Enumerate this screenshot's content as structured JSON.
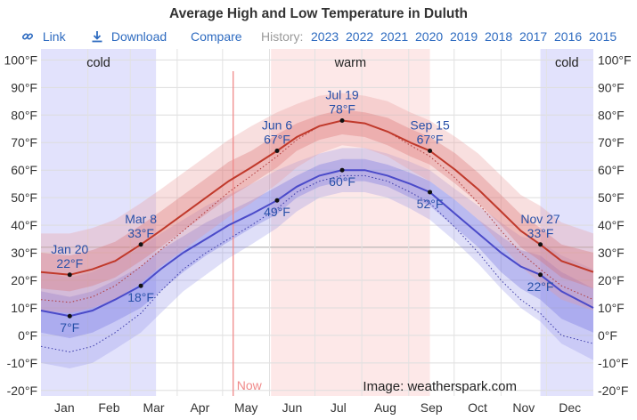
{
  "title": "Average High and Low Temperature in Duluth",
  "toolbar": {
    "link_label": "Link",
    "download_label": "Download",
    "compare_label": "Compare",
    "history_label": "History:",
    "years": [
      "2023",
      "2022",
      "2021",
      "2020",
      "2019",
      "2018",
      "2017",
      "2016",
      "2015"
    ]
  },
  "colors": {
    "high_line": "#c0392b",
    "low_line": "#4a4ac9",
    "cold_band": "#d8d8fb",
    "warm_band": "#fde5e5",
    "now_line": "#f08a8a",
    "label_text": "#2850a8"
  },
  "icons": {
    "link": "link-icon",
    "download": "download-icon"
  },
  "chart_data": {
    "type": "area",
    "title": "Average High and Low Temperature in Duluth",
    "xlabel": "",
    "ylabel": "",
    "x_ticks": [
      "Jan",
      "Feb",
      "Mar",
      "Apr",
      "May",
      "Jun",
      "Jul",
      "Aug",
      "Sep",
      "Oct",
      "Nov",
      "Dec"
    ],
    "y_ticks": [
      "-20°F",
      "-10°F",
      "0°F",
      "10°F",
      "20°F",
      "30°F",
      "40°F",
      "50°F",
      "60°F",
      "70°F",
      "80°F",
      "90°F",
      "100°F"
    ],
    "ylim": [
      -22,
      104
    ],
    "xlim_day_of_year": [
      1,
      366
    ],
    "grid": true,
    "bands": [
      {
        "label": "cold",
        "start_doy": 1,
        "end_doy": 77
      },
      {
        "label": "warm",
        "start_doy": 153,
        "end_doy": 258
      },
      {
        "label": "cold",
        "start_doy": 331,
        "end_doy": 366
      }
    ],
    "now_marker": {
      "label": "Now",
      "doy": 128
    },
    "series": [
      {
        "name": "high",
        "doy": [
          1,
          20,
          35,
          50,
          67,
          80,
          95,
          110,
          125,
          140,
          157,
          170,
          185,
          200,
          215,
          230,
          245,
          258,
          275,
          290,
          305,
          318,
          331,
          345,
          366
        ],
        "values": [
          23,
          22,
          24,
          27,
          33,
          38,
          44,
          50,
          56,
          61,
          67,
          72,
          76,
          78,
          77,
          74,
          70,
          67,
          60,
          53,
          45,
          38,
          33,
          27,
          23
        ],
        "p10_p90": [
          [
            9,
            37
          ],
          [
            8,
            37
          ],
          [
            10,
            39
          ],
          [
            13,
            42
          ],
          [
            19,
            48
          ],
          [
            25,
            53
          ],
          [
            31,
            59
          ],
          [
            37,
            65
          ],
          [
            43,
            71
          ],
          [
            48,
            76
          ],
          [
            55,
            81
          ],
          [
            61,
            84
          ],
          [
            66,
            87
          ],
          [
            69,
            88
          ],
          [
            68,
            87
          ],
          [
            65,
            85
          ],
          [
            60,
            81
          ],
          [
            56,
            78
          ],
          [
            49,
            72
          ],
          [
            42,
            66
          ],
          [
            33,
            58
          ],
          [
            25,
            51
          ],
          [
            19,
            47
          ],
          [
            13,
            41
          ],
          [
            9,
            37
          ]
        ],
        "p25_p75": [
          [
            17,
            30
          ],
          [
            16,
            29
          ],
          [
            18,
            31
          ],
          [
            21,
            34
          ],
          [
            27,
            40
          ],
          [
            32,
            45
          ],
          [
            38,
            51
          ],
          [
            44,
            57
          ],
          [
            50,
            63
          ],
          [
            55,
            67
          ],
          [
            61,
            73
          ],
          [
            67,
            77
          ],
          [
            71,
            80
          ],
          [
            73,
            82
          ],
          [
            72,
            81
          ],
          [
            69,
            79
          ],
          [
            65,
            75
          ],
          [
            62,
            72
          ],
          [
            55,
            66
          ],
          [
            48,
            59
          ],
          [
            40,
            51
          ],
          [
            32,
            44
          ],
          [
            27,
            39
          ],
          [
            21,
            33
          ],
          [
            17,
            30
          ]
        ]
      },
      {
        "name": "low",
        "doy": [
          1,
          20,
          35,
          50,
          67,
          80,
          95,
          110,
          125,
          140,
          157,
          170,
          185,
          200,
          215,
          230,
          245,
          258,
          275,
          290,
          305,
          318,
          331,
          345,
          366
        ],
        "values": [
          9,
          7,
          9,
          13,
          18,
          24,
          30,
          35,
          40,
          44,
          49,
          54,
          58,
          60,
          60,
          58,
          55,
          52,
          44,
          37,
          30,
          25,
          22,
          16,
          10
        ],
        "p10_p90": [
          [
            -10,
            23
          ],
          [
            -12,
            21
          ],
          [
            -10,
            23
          ],
          [
            -5,
            27
          ],
          [
            1,
            32
          ],
          [
            8,
            37
          ],
          [
            16,
            42
          ],
          [
            22,
            47
          ],
          [
            28,
            51
          ],
          [
            33,
            55
          ],
          [
            39,
            60
          ],
          [
            45,
            63
          ],
          [
            50,
            66
          ],
          [
            52,
            68
          ],
          [
            52,
            68
          ],
          [
            50,
            66
          ],
          [
            46,
            63
          ],
          [
            42,
            60
          ],
          [
            34,
            53
          ],
          [
            26,
            47
          ],
          [
            17,
            41
          ],
          [
            10,
            36
          ],
          [
            5,
            34
          ],
          [
            -3,
            29
          ],
          [
            -9,
            24
          ]
        ],
        "p25_p75": [
          [
            1,
            16
          ],
          [
            -1,
            14
          ],
          [
            1,
            16
          ],
          [
            5,
            20
          ],
          [
            10,
            25
          ],
          [
            16,
            31
          ],
          [
            23,
            36
          ],
          [
            29,
            41
          ],
          [
            34,
            45
          ],
          [
            39,
            49
          ],
          [
            44,
            54
          ],
          [
            50,
            58
          ],
          [
            54,
            62
          ],
          [
            56,
            64
          ],
          [
            56,
            64
          ],
          [
            54,
            62
          ],
          [
            50,
            59
          ],
          [
            47,
            56
          ],
          [
            39,
            49
          ],
          [
            32,
            42
          ],
          [
            23,
            36
          ],
          [
            17,
            31
          ],
          [
            13,
            29
          ],
          [
            6,
            23
          ],
          [
            1,
            17
          ]
        ]
      },
      {
        "name": "perceived high",
        "doy": [
          1,
          20,
          35,
          50,
          67,
          80,
          95,
          110,
          125,
          140,
          157,
          170,
          185,
          200,
          215,
          230,
          245,
          258,
          275,
          290,
          305,
          318,
          331,
          345,
          366
        ],
        "values": [
          13,
          12,
          14,
          18,
          25,
          31,
          38,
          45,
          52,
          58,
          65,
          71,
          76,
          78,
          77,
          74,
          69,
          65,
          57,
          48,
          38,
          30,
          24,
          18,
          13
        ]
      },
      {
        "name": "perceived low",
        "doy": [
          1,
          20,
          35,
          50,
          67,
          80,
          95,
          110,
          125,
          140,
          157,
          170,
          185,
          200,
          215,
          230,
          245,
          258,
          275,
          290,
          305,
          318,
          331,
          345,
          366
        ],
        "values": [
          -4,
          -6,
          -4,
          1,
          8,
          16,
          24,
          30,
          35,
          40,
          46,
          52,
          56,
          58,
          58,
          56,
          52,
          48,
          39,
          30,
          20,
          13,
          8,
          0,
          -3
        ]
      }
    ],
    "annotations": [
      {
        "date": "Jan 20",
        "value": "22°F",
        "series": "high"
      },
      {
        "date": "",
        "value": "7°F",
        "series": "low"
      },
      {
        "date": "Mar 8",
        "value": "33°F",
        "series": "high"
      },
      {
        "date": "",
        "value": "18°F",
        "series": "low"
      },
      {
        "date": "Jun 6",
        "value": "67°F",
        "series": "high"
      },
      {
        "date": "",
        "value": "49°F",
        "series": "low"
      },
      {
        "date": "Jul 19",
        "value": "78°F",
        "series": "high"
      },
      {
        "date": "",
        "value": "60°F",
        "series": "low"
      },
      {
        "date": "Sep 15",
        "value": "67°F",
        "series": "high"
      },
      {
        "date": "",
        "value": "52°F",
        "series": "low"
      },
      {
        "date": "Nov 27",
        "value": "33°F",
        "series": "high"
      },
      {
        "date": "",
        "value": "22°F",
        "series": "low"
      }
    ],
    "annotation_points": [
      {
        "doy": 20,
        "high": 22,
        "low": 7
      },
      {
        "doy": 67,
        "high": 33,
        "low": 18
      },
      {
        "doy": 157,
        "high": 67,
        "low": 49
      },
      {
        "doy": 200,
        "high": 78,
        "low": 60
      },
      {
        "doy": 258,
        "high": 67,
        "low": 52
      },
      {
        "doy": 331,
        "high": 33,
        "low": 22
      }
    ],
    "credit": "Image: weatherspark.com"
  }
}
